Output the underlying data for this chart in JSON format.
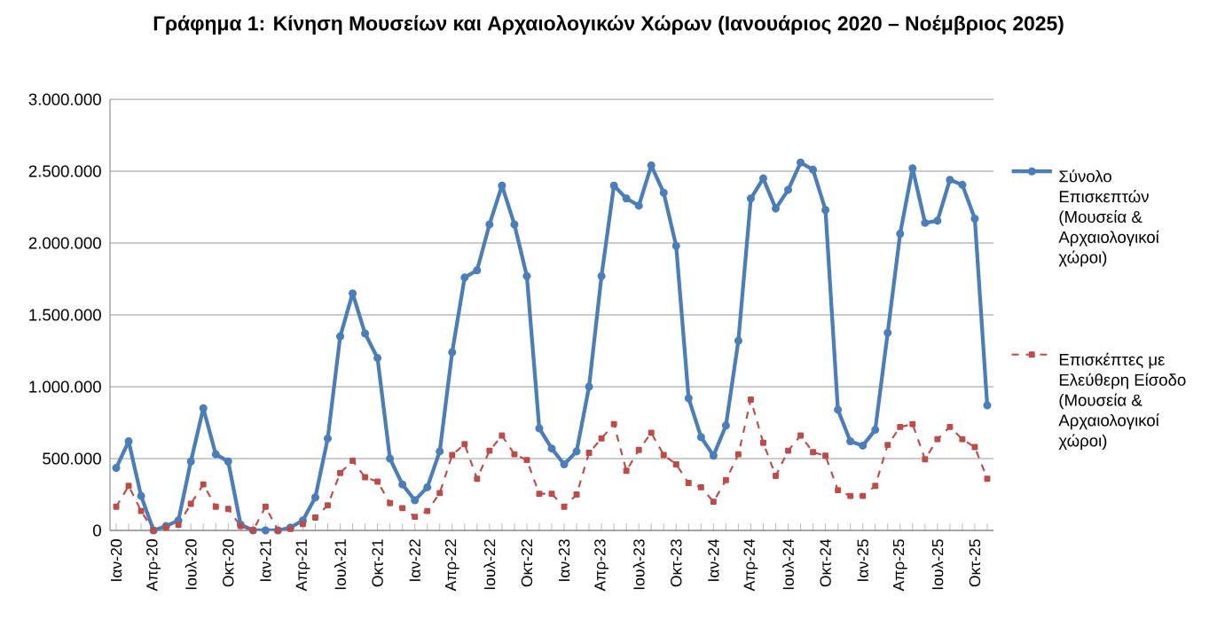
{
  "chart_data": {
    "type": "line",
    "title": "**Γράφημα 1: Κίνηση Μουσείων και Αρχαιολογικών Χώρων (Ιανουάριος 2020 – Νοέμβριος 2025)**",
    "categories": [
      "Ιαν-20",
      null,
      null,
      "Απρ-20",
      null,
      null,
      "Ιουλ-20",
      null,
      null,
      "Οκτ-20",
      null,
      null,
      "Ιαν-21",
      null,
      null,
      "Απρ-21",
      null,
      null,
      "Ιουλ-21",
      null,
      null,
      "Οκτ-21",
      null,
      null,
      "Ιαν-22",
      null,
      null,
      "Απρ-22",
      null,
      null,
      "Ιουλ-22",
      null,
      null,
      "Οκτ-22",
      null,
      null,
      "Ιαν-23",
      null,
      null,
      "Απρ-23",
      null,
      null,
      "Ιουλ-23",
      null,
      null,
      "Οκτ-23",
      null,
      null,
      "Ιαν-24",
      null,
      null,
      "Απρ-24",
      null,
      null,
      "Ιουλ-24",
      null,
      null,
      "Οκτ-24",
      null,
      null,
      "Ιαν-25",
      null,
      null,
      "Απρ-25",
      null,
      null,
      "Ιουλ-25",
      null,
      null,
      "Οκτ-25",
      null
    ],
    "series": [
      {
        "name": "Σύνολο Επισκεπτών (Μουσεία & Αρχαιολογικοί χώροι)",
        "color": "#4a7ebb",
        "marker": "circle",
        "line_style": "solid",
        "values": [
          435000,
          620000,
          240000,
          0,
          30000,
          70000,
          480000,
          850000,
          530000,
          480000,
          40000,
          0,
          0,
          0,
          20000,
          70000,
          230000,
          640000,
          1350000,
          1650000,
          1370000,
          1200000,
          500000,
          320000,
          210000,
          300000,
          550000,
          1240000,
          1760000,
          1810000,
          2130000,
          2400000,
          2130000,
          1770000,
          710000,
          570000,
          460000,
          550000,
          1000000,
          1770000,
          2400000,
          2310000,
          2260000,
          2540000,
          2350000,
          1980000,
          920000,
          650000,
          520000,
          730000,
          1320000,
          2310000,
          2450000,
          2240000,
          2370000,
          2560000,
          2510000,
          2230000,
          840000,
          620000,
          590000,
          700000,
          1375000,
          2065000,
          2520000,
          2140000,
          2155000,
          2440000,
          2405000,
          2170000,
          870000
        ]
      },
      {
        "name": "Επισκέπτες με Ελεύθερη Είσοδο (Μουσεία & Αρχαιολογικοί χώροι)",
        "color": "#be4b48",
        "marker": "square",
        "line_style": "dashed",
        "values": [
          165000,
          310000,
          135000,
          0,
          20000,
          40000,
          185000,
          320000,
          165000,
          150000,
          30000,
          0,
          165000,
          0,
          10000,
          45000,
          90000,
          175000,
          400000,
          485000,
          370000,
          340000,
          190000,
          155000,
          95000,
          135000,
          260000,
          525000,
          600000,
          360000,
          555000,
          660000,
          530000,
          490000,
          255000,
          255000,
          165000,
          250000,
          540000,
          640000,
          740000,
          415000,
          560000,
          680000,
          525000,
          460000,
          330000,
          300000,
          200000,
          350000,
          530000,
          910000,
          610000,
          380000,
          555000,
          660000,
          545000,
          520000,
          280000,
          240000,
          240000,
          310000,
          595000,
          720000,
          740000,
          495000,
          635000,
          720000,
          635000,
          580000,
          360000
        ]
      }
    ],
    "ylim": [
      0,
      3000000
    ],
    "yticks": [
      0,
      {
        "value": 500000,
        "label": "500.000"
      },
      {
        "value": 1000000,
        "label": "1.000.000"
      },
      {
        "value": 1500000,
        "label": "1.500.000"
      },
      {
        "value": 2000000,
        "label": "2.000.000"
      },
      {
        "value": 2500000,
        "label": "2.500.000"
      },
      {
        "value": 3000000,
        "label": "3.000.000"
      }
    ],
    "grid": "y",
    "legend": "right"
  }
}
